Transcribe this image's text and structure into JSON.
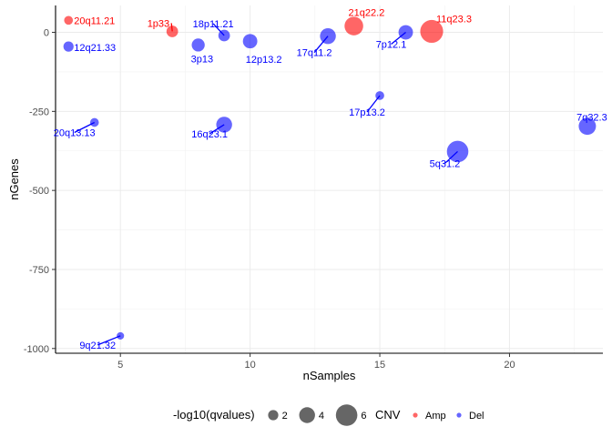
{
  "chart_data": {
    "type": "scatter",
    "xlabel": "nSamples",
    "ylabel": "nGenes",
    "xlim": [
      2.5,
      23.6
    ],
    "ylim": [
      -1015,
      85
    ],
    "x_ticks": [
      5,
      10,
      15,
      20
    ],
    "y_ticks": [
      0,
      -250,
      -500,
      -750,
      -1000
    ],
    "grid": true,
    "colors": {
      "Amp": "#ff0000",
      "Del": "#0000ff"
    },
    "points": [
      {
        "label": "20q11.21",
        "x": 3,
        "y": 38,
        "qval": 1.5,
        "cnv": "Amp"
      },
      {
        "label": "1p33",
        "x": 7,
        "y": 3,
        "qval": 2.5,
        "cnv": "Amp"
      },
      {
        "label": "21q22.2",
        "x": 14,
        "y": 20,
        "qval": 5.0,
        "cnv": "Amp"
      },
      {
        "label": "11q23.3",
        "x": 17,
        "y": 3,
        "qval": 6.5,
        "cnv": "Amp"
      },
      {
        "label": "12q21.33",
        "x": 3,
        "y": -45,
        "qval": 2.0,
        "cnv": "Del"
      },
      {
        "label": "3p13",
        "x": 8,
        "y": -40,
        "qval": 3.0,
        "cnv": "Del"
      },
      {
        "label": "18p11.21",
        "x": 9,
        "y": -10,
        "qval": 2.5,
        "cnv": "Del"
      },
      {
        "label": "12p13.2",
        "x": 10,
        "y": -28,
        "qval": 3.5,
        "cnv": "Del"
      },
      {
        "label": "17q11.2",
        "x": 13,
        "y": -12,
        "qval": 4.0,
        "cnv": "Del"
      },
      {
        "label": "7p12.1",
        "x": 16,
        "y": 0,
        "qval": 3.5,
        "cnv": "Del"
      },
      {
        "label": "17p13.2",
        "x": 15,
        "y": -200,
        "qval": 1.5,
        "cnv": "Del"
      },
      {
        "label": "20q13.13",
        "x": 4,
        "y": -285,
        "qval": 1.5,
        "cnv": "Del"
      },
      {
        "label": "16q23.1",
        "x": 9,
        "y": -292,
        "qval": 4.0,
        "cnv": "Del"
      },
      {
        "label": "5q31.2",
        "x": 18,
        "y": -377,
        "qval": 6.0,
        "cnv": "Del"
      },
      {
        "label": "7q32.3",
        "x": 23,
        "y": -297,
        "qval": 4.5,
        "cnv": "Del"
      },
      {
        "label": "9q21.32",
        "x": 5,
        "y": -960,
        "qval": 1.0,
        "cnv": "Del"
      }
    ],
    "legend": {
      "placement": "bottom",
      "size_title": "-log10(qvalues)",
      "size_entries": [
        {
          "label": "2",
          "value": 2
        },
        {
          "label": "4",
          "value": 4
        },
        {
          "label": "6",
          "value": 6
        }
      ],
      "color_title": "CNV",
      "color_entries": [
        {
          "label": "Amp",
          "cnv": "Amp"
        },
        {
          "label": "Del",
          "cnv": "Del"
        }
      ]
    }
  }
}
